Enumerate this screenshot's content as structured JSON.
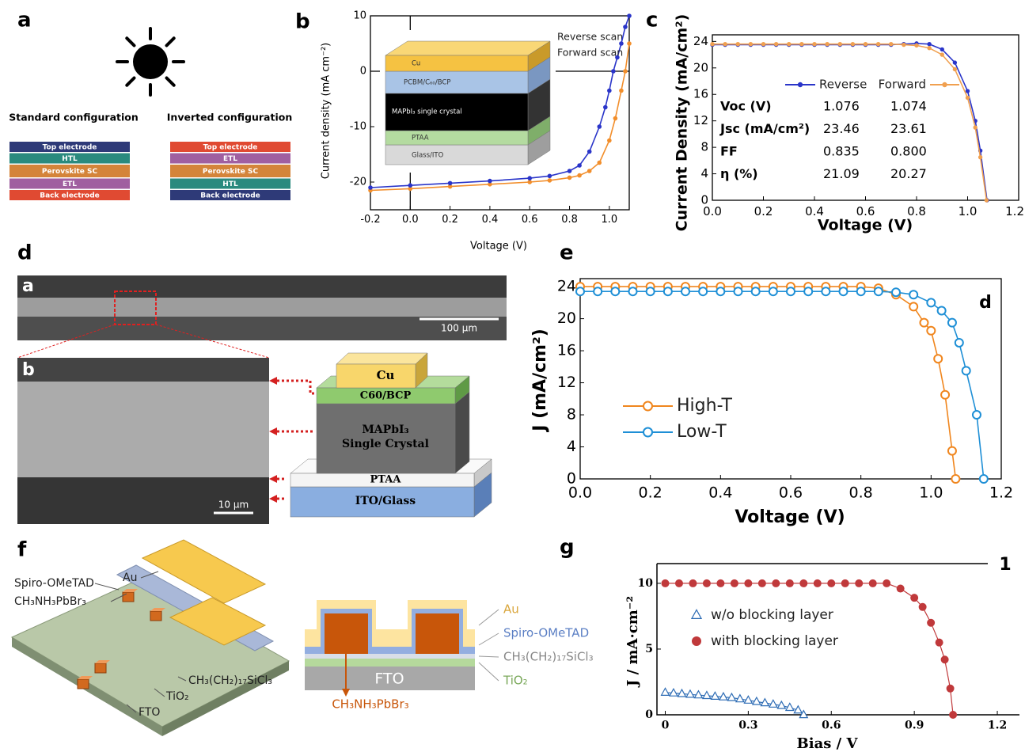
{
  "panel_labels": [
    "a",
    "b",
    "c",
    "d",
    "e",
    "f",
    "g"
  ],
  "config_a": {
    "standard": {
      "title": "Standard configuration",
      "layers": [
        "Top electrode",
        "HTL",
        "Perovskite SC",
        "ETL",
        "Back electrode"
      ]
    },
    "inverted": {
      "title": "Inverted configuration",
      "layers": [
        "Top electrode",
        "ETL",
        "Perovskite SC",
        "HTL",
        "Back electrode"
      ]
    }
  },
  "inset_b": {
    "layers": [
      "Cu",
      "PCBM/C₆₀/BCP",
      "MAPbI₃ single crystal",
      "PTAA",
      "Glass/ITO"
    ]
  },
  "table_c": {
    "rows": [
      [
        "Voc (V)",
        "1.076",
        "1.074"
      ],
      [
        "Jsc (mA/cm²)",
        "23.46",
        "23.61"
      ],
      [
        "FF",
        "0.835",
        "0.800"
      ],
      [
        "η (%)",
        "21.09",
        "20.27"
      ]
    ]
  },
  "sem_d": {
    "image_labels": [
      "a",
      "b"
    ],
    "scale_bars": [
      "100 µm",
      "10 µm"
    ],
    "layers": [
      "Cu",
      "C60/BCP",
      "MAPbI₃",
      "Single Crystal",
      "PTAA",
      "ITO/Glass"
    ]
  },
  "device_f": {
    "left_labels": [
      "Spiro-OMeTAD",
      "CH₃NH₃PbBr₃",
      "Au",
      "CH₃(CH₂)₁₇SiCl₃",
      "TiO₂",
      "FTO"
    ],
    "right_labels": [
      "Au",
      "Spiro-OMeTAD",
      "CH₃(CH₂)₁₇SiCl₃",
      "TiO₂"
    ],
    "layer_label": "FTO",
    "crystal_label": "CH₃NH₃PbBr₃"
  },
  "chart_data": [
    {
      "type": "line",
      "x_label": "Voltage (V)",
      "y_label": "Current density (mA cm⁻²)",
      "xlim": [
        -0.2,
        1.1
      ],
      "ylim": [
        -25,
        10
      ],
      "xticks": [
        -0.2,
        {
          "value": 0,
          "label": "0.0"
        },
        0.2,
        0.4,
        0.6,
        0.8,
        {
          "value": 1,
          "label": "1.0"
        }
      ],
      "yticks": [
        -20,
        -10,
        0,
        10
      ],
      "zero_lines": true,
      "legend": "upper right",
      "series": [
        {
          "name": "Reverse scan",
          "color": "#f28e2b",
          "marker": "circle",
          "x": [
            -0.2,
            0,
            0.2,
            0.4,
            0.6,
            0.7,
            0.8,
            0.85,
            0.9,
            0.95,
            1.0,
            1.03,
            1.06,
            1.08,
            1.1
          ],
          "values": [
            -21.5,
            -21.2,
            -20.8,
            -20.4,
            -20,
            -19.7,
            -19.2,
            -18.8,
            -18,
            -16.5,
            -12.5,
            -8.5,
            -3.5,
            0,
            5
          ]
        },
        {
          "name": "Forward scan",
          "color": "#2a35c9",
          "marker": "circle",
          "x": [
            -0.2,
            0,
            0.2,
            0.4,
            0.6,
            0.7,
            0.8,
            0.85,
            0.9,
            0.95,
            0.98,
            1.0,
            1.02,
            1.04,
            1.06,
            1.08,
            1.1
          ],
          "values": [
            -21,
            -20.6,
            -20.2,
            -19.8,
            -19.3,
            -18.9,
            -18,
            -17,
            -14.5,
            -10,
            -6.5,
            -3.5,
            0,
            2.5,
            5,
            8,
            10
          ]
        }
      ]
    },
    {
      "type": "line",
      "x_label": "Voltage (V)",
      "y_label": "Current Density (mA/cm²)",
      "xlim": [
        0,
        1.2
      ],
      "ylim": [
        0,
        25
      ],
      "xticks": [
        {
          "value": 0,
          "label": "0.0"
        },
        0.2,
        0.4,
        0.6,
        0.8,
        {
          "value": 1,
          "label": "1.0"
        },
        1.2
      ],
      "yticks": [
        0,
        4,
        8,
        12,
        16,
        20,
        24
      ],
      "legend": "center",
      "series": [
        {
          "name": "Reverse",
          "color": "#2a35c9",
          "marker": "circle",
          "x": [
            0,
            0.05,
            0.1,
            0.15,
            0.2,
            0.25,
            0.3,
            0.35,
            0.4,
            0.45,
            0.5,
            0.55,
            0.6,
            0.65,
            0.7,
            0.75,
            0.8,
            0.85,
            0.9,
            0.95,
            1.0,
            1.03,
            1.05,
            1.076
          ],
          "values": [
            23.5,
            23.5,
            23.5,
            23.5,
            23.5,
            23.5,
            23.5,
            23.5,
            23.5,
            23.5,
            23.5,
            23.5,
            23.5,
            23.5,
            23.5,
            23.6,
            23.7,
            23.6,
            22.8,
            20.8,
            16.5,
            12,
            7.5,
            0
          ]
        },
        {
          "name": "Forward",
          "color": "#f0a050",
          "marker": "circle",
          "x": [
            0,
            0.05,
            0.1,
            0.15,
            0.2,
            0.25,
            0.3,
            0.35,
            0.4,
            0.45,
            0.5,
            0.55,
            0.6,
            0.65,
            0.7,
            0.75,
            0.8,
            0.85,
            0.9,
            0.95,
            1.0,
            1.03,
            1.05,
            1.074
          ],
          "values": [
            23.6,
            23.6,
            23.6,
            23.6,
            23.6,
            23.6,
            23.6,
            23.6,
            23.6,
            23.6,
            23.6,
            23.6,
            23.6,
            23.6,
            23.6,
            23.5,
            23.4,
            23,
            22,
            19.8,
            15.5,
            11,
            6.5,
            0
          ]
        }
      ]
    },
    {
      "type": "line",
      "x_label": "Voltage (V)",
      "y_label": "J (mA/cm²)",
      "annotation": "d",
      "xlim": [
        0,
        1.2
      ],
      "ylim": [
        0,
        25
      ],
      "xticks": [
        {
          "value": 0,
          "label": "0.0"
        },
        0.2,
        0.4,
        0.6,
        0.8,
        {
          "value": 1,
          "label": "1.0"
        },
        1.2
      ],
      "yticks": [
        0,
        4,
        8,
        12,
        16,
        20,
        24
      ],
      "legend": "lower left",
      "series": [
        {
          "name": "High-T",
          "color": "#f0861e",
          "marker": "open-circle",
          "x": [
            0,
            0.05,
            0.1,
            0.15,
            0.2,
            0.25,
            0.3,
            0.35,
            0.4,
            0.45,
            0.5,
            0.55,
            0.6,
            0.65,
            0.7,
            0.75,
            0.8,
            0.85,
            0.9,
            0.95,
            0.98,
            1.0,
            1.02,
            1.04,
            1.06,
            1.07
          ],
          "values": [
            24,
            24,
            24,
            24,
            24,
            24,
            24,
            24,
            24,
            24,
            24,
            24,
            24,
            24,
            24,
            24,
            24,
            23.8,
            23,
            21.5,
            19.5,
            18.5,
            15,
            10.5,
            3.5,
            0
          ]
        },
        {
          "name": "Low-T",
          "color": "#1e8fd6",
          "marker": "open-circle",
          "x": [
            0,
            0.05,
            0.1,
            0.15,
            0.2,
            0.25,
            0.3,
            0.35,
            0.4,
            0.45,
            0.5,
            0.55,
            0.6,
            0.65,
            0.7,
            0.75,
            0.8,
            0.85,
            0.9,
            0.95,
            1.0,
            1.03,
            1.06,
            1.08,
            1.1,
            1.13,
            1.15
          ],
          "values": [
            23.4,
            23.4,
            23.4,
            23.4,
            23.4,
            23.4,
            23.4,
            23.4,
            23.4,
            23.4,
            23.4,
            23.4,
            23.4,
            23.4,
            23.4,
            23.4,
            23.4,
            23.4,
            23.3,
            23,
            22,
            21,
            19.5,
            17,
            13.5,
            8,
            0
          ]
        }
      ]
    },
    {
      "type": "line",
      "x_label": "Bias / V",
      "y_label": "J / mA·cm⁻²",
      "annotation": "1",
      "xlim": [
        -0.03,
        1.28
      ],
      "ylim": [
        0,
        11.5
      ],
      "xticks": [
        0,
        0.3,
        0.6,
        0.9,
        1.2
      ],
      "yticks": [
        0,
        5,
        10
      ],
      "legend": "center left",
      "series": [
        {
          "name": "w/o blocking layer",
          "color": "#2f6db5",
          "marker": "open-triangle",
          "x": [
            0,
            0.03,
            0.06,
            0.09,
            0.12,
            0.15,
            0.18,
            0.21,
            0.24,
            0.27,
            0.3,
            0.33,
            0.36,
            0.39,
            0.42,
            0.45,
            0.48,
            0.5
          ],
          "values": [
            1.7,
            1.65,
            1.6,
            1.55,
            1.5,
            1.45,
            1.4,
            1.35,
            1.3,
            1.2,
            1.1,
            1.0,
            0.9,
            0.8,
            0.7,
            0.55,
            0.35,
            0
          ]
        },
        {
          "name": "with blocking layer",
          "color": "#c0393b",
          "marker": "circle",
          "x": [
            0,
            0.05,
            0.1,
            0.15,
            0.2,
            0.25,
            0.3,
            0.35,
            0.4,
            0.45,
            0.5,
            0.55,
            0.6,
            0.65,
            0.7,
            0.75,
            0.8,
            0.85,
            0.9,
            0.93,
            0.96,
            0.99,
            1.01,
            1.03,
            1.04
          ],
          "values": [
            10,
            10,
            10,
            10,
            10,
            10,
            10,
            10,
            10,
            10,
            10,
            10,
            10,
            10,
            10,
            10,
            10,
            9.6,
            8.9,
            8.2,
            7,
            5.5,
            4.2,
            2,
            0
          ]
        }
      ]
    }
  ]
}
